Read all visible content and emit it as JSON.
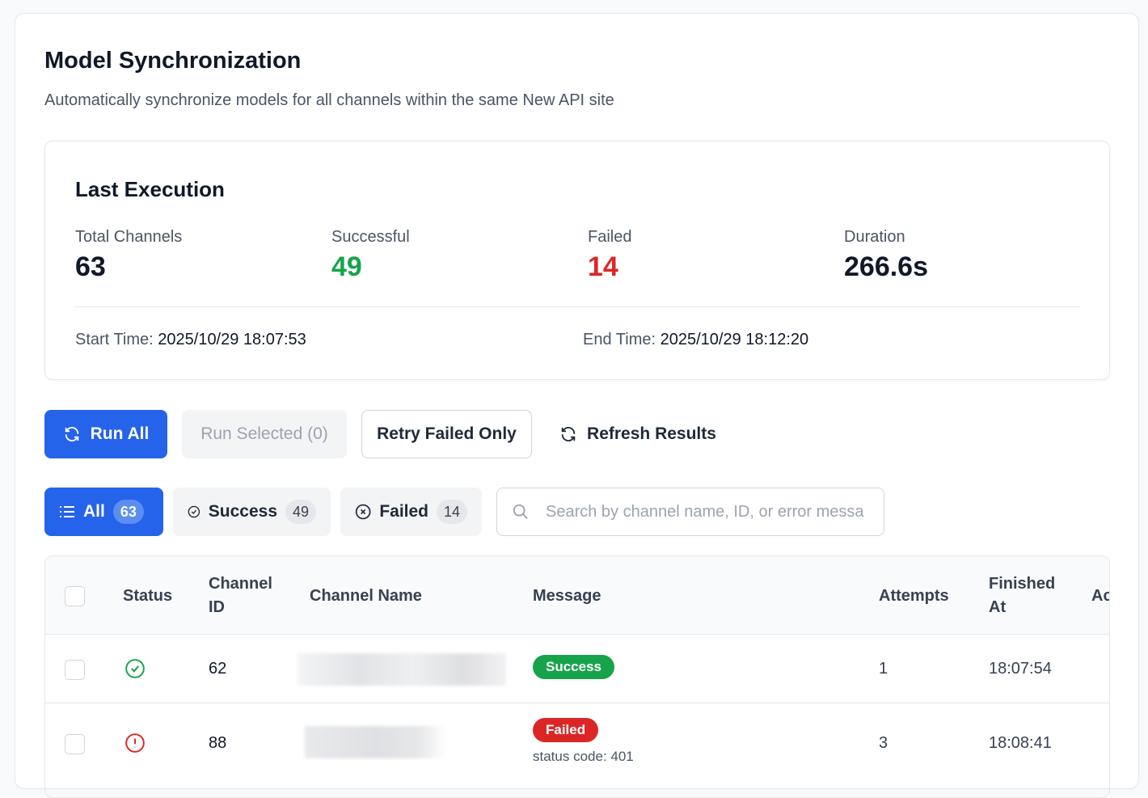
{
  "header": {
    "title": "Model Synchronization",
    "subtitle": "Automatically synchronize models for all channels within the same New API site"
  },
  "last_execution": {
    "title": "Last Execution",
    "stats": [
      {
        "label": "Total Channels",
        "value": "63",
        "color": "#111827"
      },
      {
        "label": "Successful",
        "value": "49",
        "color": "#16a34a"
      },
      {
        "label": "Failed",
        "value": "14",
        "color": "#dc2626"
      },
      {
        "label": "Duration",
        "value": "266.6s",
        "color": "#111827"
      }
    ],
    "start_label": "Start Time:",
    "start_value": "2025/10/29 18:07:53",
    "end_label": "End Time:",
    "end_value": "2025/10/29 18:12:20"
  },
  "actions": {
    "run_all": "Run All",
    "run_selected": "Run Selected (0)",
    "retry_failed": "Retry Failed Only",
    "refresh": "Refresh Results"
  },
  "filters": [
    {
      "label": "All",
      "count": "63",
      "icon": "list-icon"
    },
    {
      "label": "Success",
      "count": "49",
      "icon": "check-circle-icon"
    },
    {
      "label": "Failed",
      "count": "14",
      "icon": "x-circle-icon"
    }
  ],
  "search": {
    "placeholder": "Search by channel name, ID, or error messa",
    "value": ""
  },
  "table": {
    "columns": [
      "Status",
      "Channel ID",
      "Channel Name",
      "Message",
      "Attempts",
      "Finished At",
      "Ac"
    ],
    "rows": [
      {
        "status": "success",
        "channel_id": "62",
        "message_badge": "Success",
        "message_detail": "",
        "attempts": "1",
        "finished_at": "18:07:54"
      },
      {
        "status": "failed",
        "channel_id": "88",
        "message_badge": "Failed",
        "message_detail": "status code: 401",
        "attempts": "3",
        "finished_at": "18:08:41"
      }
    ]
  },
  "colors": {
    "primary": "#2563eb",
    "success": "#16a34a",
    "danger": "#dc2626"
  }
}
